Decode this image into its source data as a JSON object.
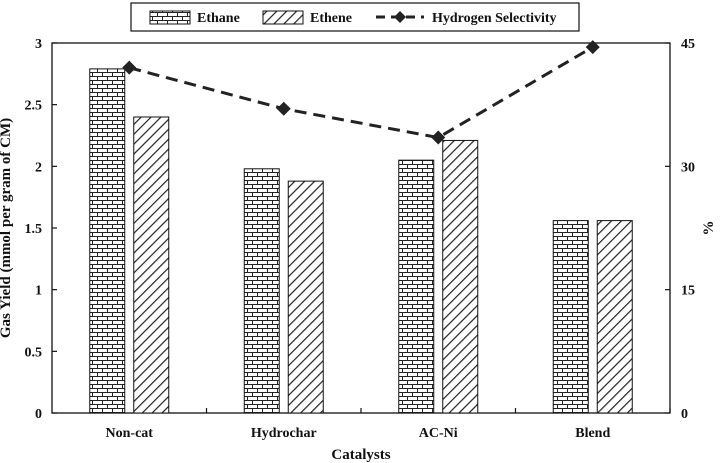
{
  "chart_data": {
    "type": "bar",
    "categories": [
      "Non-cat",
      "Hydrochar",
      "AC-Ni",
      "Blend"
    ],
    "series": [
      {
        "name": "Ethane",
        "values": [
          2.79,
          1.98,
          2.05,
          1.56
        ],
        "pattern": "brick",
        "axis": "left"
      },
      {
        "name": "Ethene",
        "values": [
          2.4,
          1.88,
          2.21,
          1.56
        ],
        "pattern": "diagonal",
        "axis": "left"
      }
    ],
    "line_series": [
      {
        "name": "Hydrogen Selectivity",
        "values": [
          42.0,
          37.0,
          33.5,
          44.5
        ],
        "axis": "right",
        "marker": "diamond",
        "style": "dashed"
      }
    ],
    "xlabel": "Catalysts",
    "ylabel": "Gas Yield (mmol per gram of CM)",
    "y2label": "%",
    "ylim": [
      0,
      3
    ],
    "yticks": [
      "0",
      "0.5",
      "1",
      "1.5",
      "2",
      "2.5",
      "3"
    ],
    "y2lim": [
      0,
      45
    ],
    "y2ticks": [
      "0",
      "15",
      "30",
      "45"
    ],
    "legend_position": "top",
    "grid": false
  }
}
